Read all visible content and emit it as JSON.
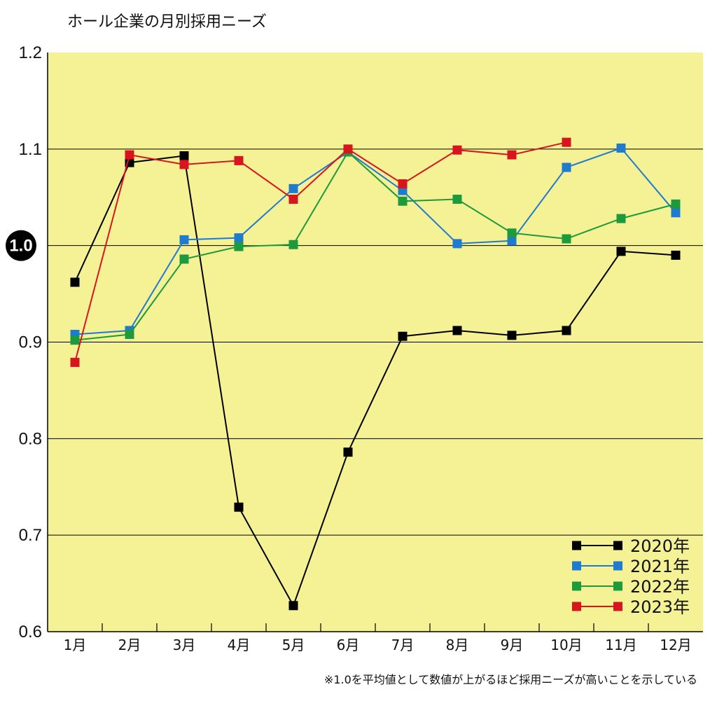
{
  "chart_data": {
    "type": "line",
    "title": "ホール企業の月別採用ニーズ",
    "xlabel": "",
    "ylabel": "",
    "categories": [
      "1月",
      "2月",
      "3月",
      "4月",
      "5月",
      "6月",
      "7月",
      "8月",
      "9月",
      "10月",
      "11月",
      "12月"
    ],
    "ylim": [
      0.6,
      1.2
    ],
    "yticks": [
      "0.6",
      "0.7",
      "0.8",
      "0.9",
      "1.0",
      "1.1",
      "1.2"
    ],
    "reference_label": "1.0",
    "grid": true,
    "legend": "bottom-right",
    "background_color": "#f5f195",
    "series": [
      {
        "name": "2020年",
        "color": "#000000",
        "values": [
          0.962,
          1.086,
          1.093,
          0.729,
          0.627,
          0.786,
          0.906,
          0.912,
          0.907,
          0.912,
          0.994,
          0.99
        ]
      },
      {
        "name": "2021年",
        "color": "#1f7bd0",
        "values": [
          0.908,
          0.912,
          1.006,
          1.008,
          1.059,
          1.097,
          1.057,
          1.002,
          1.005,
          1.081,
          1.101,
          1.034
        ]
      },
      {
        "name": "2022年",
        "color": "#1c9a3c",
        "values": [
          0.902,
          0.908,
          0.986,
          0.999,
          1.001,
          1.097,
          1.046,
          1.048,
          1.013,
          1.007,
          1.028,
          1.043
        ]
      },
      {
        "name": "2023年",
        "color": "#d8141e",
        "values": [
          0.879,
          1.094,
          1.084,
          1.088,
          1.048,
          1.1,
          1.064,
          1.099,
          1.094,
          1.107,
          null,
          null
        ]
      }
    ],
    "footnote": "※1.0を平均値として数値が上がるほど採用ニーズが高いことを示している"
  }
}
